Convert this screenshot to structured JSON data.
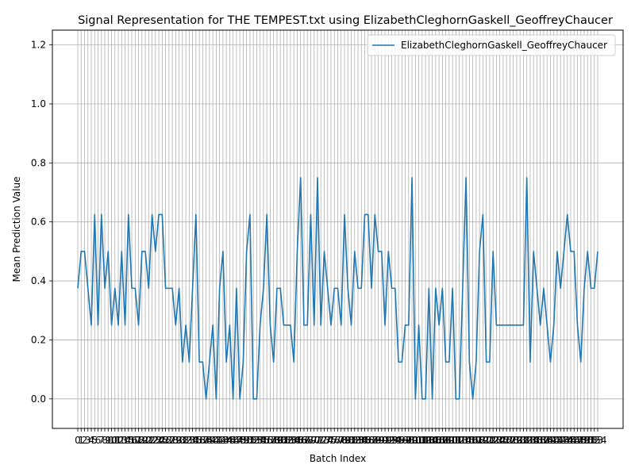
{
  "chart_data": {
    "type": "line",
    "title": "Signal Representation for THE TEMPEST.txt using ElizabethCleghornGaskell_GeoffreyChaucer",
    "xlabel": "Batch Index",
    "ylabel": "Mean Prediction Value",
    "ylim": [
      -0.1,
      1.25
    ],
    "yticks": [
      "0.0",
      "0.2",
      "0.4",
      "0.6",
      "0.8",
      "1.0",
      "1.2"
    ],
    "grid": true,
    "legend_position": "top-right",
    "series": [
      {
        "name": "ElizabethCleghornGaskell_GeoffreyChaucer",
        "color": "#1f77b4",
        "values": [
          0.375,
          0.5,
          0.5,
          0.375,
          0.25,
          0.625,
          0.25,
          0.625,
          0.375,
          0.5,
          0.25,
          0.375,
          0.25,
          0.5,
          0.25,
          0.625,
          0.375,
          0.375,
          0.25,
          0.5,
          0.5,
          0.375,
          0.625,
          0.5,
          0.625,
          0.625,
          0.375,
          0.375,
          0.375,
          0.25,
          0.375,
          0.125,
          0.25,
          0.125,
          0.375,
          0.625,
          0.125,
          0.125,
          0.0,
          0.125,
          0.25,
          0.0,
          0.375,
          0.5,
          0.125,
          0.25,
          0.0,
          0.375,
          0.0,
          0.125,
          0.5,
          0.625,
          0.0,
          0.0,
          0.25,
          0.375,
          0.625,
          0.25,
          0.125,
          0.375,
          0.375,
          0.25,
          0.25,
          0.25,
          0.125,
          0.5,
          0.75,
          0.25,
          0.25,
          0.625,
          0.25,
          0.75,
          0.25,
          0.5,
          0.375,
          0.25,
          0.375,
          0.375,
          0.25,
          0.625,
          0.375,
          0.25,
          0.5,
          0.375,
          0.375,
          0.625,
          0.625,
          0.375,
          0.625,
          0.5,
          0.5,
          0.25,
          0.5,
          0.375,
          0.375,
          0.125,
          0.125,
          0.25,
          0.25,
          0.75,
          0.0,
          0.25,
          0.0,
          0.0,
          0.375,
          0.0,
          0.375,
          0.25,
          0.375,
          0.125,
          0.125,
          0.375,
          0.0,
          0.0,
          0.375,
          0.75,
          0.125,
          0.0,
          0.125,
          0.5,
          0.625,
          0.125,
          0.125,
          0.5,
          0.25,
          0.25,
          0.25,
          0.25,
          0.25,
          0.25,
          0.25,
          0.25,
          0.25,
          0.75,
          0.125,
          0.5,
          0.375,
          0.25,
          0.375,
          0.25,
          0.125,
          0.25,
          0.5,
          0.375,
          0.5,
          0.625,
          0.5,
          0.5,
          0.25,
          0.125,
          0.375,
          0.5,
          0.375,
          0.375,
          0.5
        ]
      }
    ]
  }
}
